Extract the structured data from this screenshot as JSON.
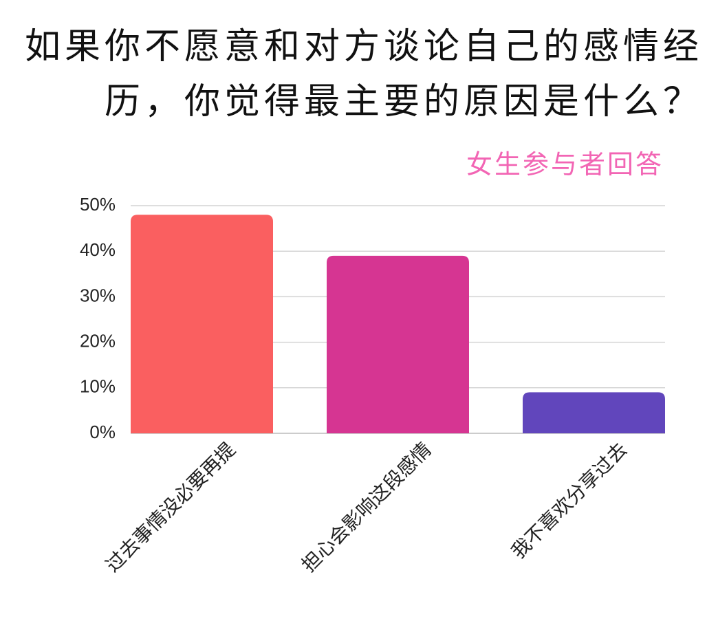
{
  "chart_data": {
    "type": "bar",
    "title": "如果你不愿意和对方谈论自己的感情经历，你觉得最主要的原因是什么？",
    "subtitle": "女生参与者回答",
    "categories": [
      "过去事情没必要再提",
      "担心会影响这段感情",
      "我不喜欢分享过去"
    ],
    "values": [
      48,
      39,
      9
    ],
    "colors": [
      "#fa5f60",
      "#d63592",
      "#6146bc"
    ],
    "ylim": [
      0,
      50
    ],
    "yticks": [
      {
        "value": 0,
        "label": "0%"
      },
      {
        "value": 10,
        "label": "10%"
      },
      {
        "value": 20,
        "label": "20%"
      },
      {
        "value": 30,
        "label": "30%"
      },
      {
        "value": 40,
        "label": "40%"
      },
      {
        "value": 50,
        "label": "50%"
      }
    ],
    "grid": true
  }
}
